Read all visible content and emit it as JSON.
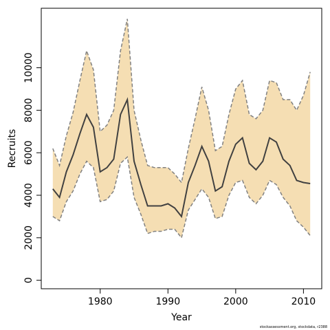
{
  "chart_data": {
    "type": "area",
    "xlabel": "Year",
    "ylabel": "Recruits",
    "xlim": [
      1971.3,
      2012.7
    ],
    "ylim": [
      -400,
      12800
    ],
    "x_ticks": [
      1980,
      1990,
      2000,
      2010
    ],
    "y_ticks": [
      0,
      2000,
      4000,
      6000,
      8000,
      10000
    ],
    "grid": false,
    "x": [
      1973,
      1974,
      1975,
      1976,
      1977,
      1978,
      1979,
      1980,
      1981,
      1982,
      1983,
      1984,
      1985,
      1986,
      1987,
      1988,
      1989,
      1990,
      1991,
      1992,
      1993,
      1994,
      1995,
      1996,
      1997,
      1998,
      1999,
      2000,
      2001,
      2002,
      2003,
      2004,
      2005,
      2006,
      2007,
      2008,
      2009,
      2010,
      2011
    ],
    "series": [
      {
        "role": "upper",
        "values": [
          6200,
          5400,
          6800,
          7900,
          9400,
          10800,
          9900,
          7000,
          7300,
          8000,
          10800,
          12300,
          8000,
          6600,
          5400,
          5300,
          5300,
          5300,
          5000,
          4600,
          6200,
          7600,
          9100,
          8000,
          6100,
          6300,
          7800,
          9000,
          9400,
          7800,
          7600,
          8000,
          9400,
          9300,
          8500,
          8500,
          8000,
          8700,
          9800
        ]
      },
      {
        "role": "estimate",
        "values": [
          4300,
          3900,
          5100,
          5900,
          6900,
          7800,
          7200,
          5100,
          5300,
          5700,
          7800,
          8500,
          5600,
          4500,
          3500,
          3500,
          3500,
          3600,
          3400,
          3000,
          4600,
          5400,
          6300,
          5600,
          4200,
          4400,
          5600,
          6400,
          6700,
          5500,
          5200,
          5600,
          6700,
          6500,
          5700,
          5400,
          4700,
          4600,
          4550
        ]
      },
      {
        "role": "lower",
        "values": [
          3000,
          2800,
          3700,
          4200,
          5000,
          5600,
          5300,
          3700,
          3800,
          4200,
          5500,
          5800,
          3900,
          3100,
          2200,
          2300,
          2300,
          2400,
          2400,
          2000,
          3300,
          3800,
          4300,
          3900,
          2900,
          3000,
          4000,
          4600,
          4700,
          3900,
          3600,
          4000,
          4700,
          4500,
          3900,
          3500,
          2800,
          2500,
          2100
        ]
      }
    ],
    "colors": {
      "band": "#f5deb3",
      "band_edge": "#808080",
      "estimate": "#404040"
    }
  },
  "credit": "stockassessment.org, stockdata, r2388"
}
